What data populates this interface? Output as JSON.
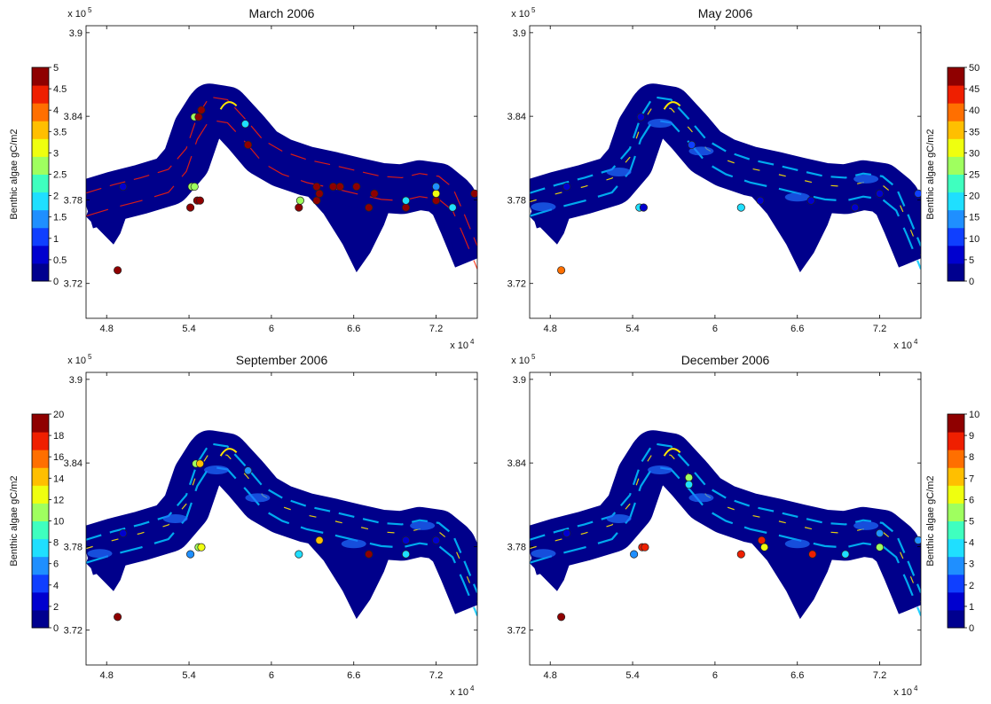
{
  "colormap": [
    "#00008f",
    "#0000cf",
    "#0f3fff",
    "#1f8fff",
    "#1fdfff",
    "#3fffbf",
    "#9fff5f",
    "#efff0f",
    "#ffbf00",
    "#ff6f00",
    "#ef1f00",
    "#8f0000"
  ],
  "river_colors": {
    "channel": "#00008b",
    "edge_cyan": "#00c8ff",
    "edge_yellow": "#ffe600",
    "edge_red": "#ff2000"
  },
  "chart_data": [
    {
      "type": "heatmap",
      "title": "March 2006",
      "x_exponent_label": "x 10",
      "x_exponent_power": "4",
      "y_exponent_label": "x 10",
      "y_exponent_power": "5",
      "x_ticks": [
        4.8,
        5.4,
        6,
        6.6,
        7.2
      ],
      "x_tick_labels": [
        "4.8",
        "5.4",
        "6",
        "6.6",
        "7.2"
      ],
      "y_ticks": [
        3.72,
        3.78,
        3.84,
        3.9
      ],
      "y_tick_labels": [
        "3.72",
        "3.78",
        "3.84",
        "3.9"
      ],
      "xlim": [
        4.65,
        7.5
      ],
      "ylim": [
        3.695,
        3.905
      ],
      "colorbar": {
        "label": "Benthic algae gC/m2",
        "range": [
          0,
          5
        ],
        "ticks": [
          0,
          0.5,
          1,
          1.5,
          2,
          2.5,
          3,
          3.5,
          4,
          4.5,
          5
        ],
        "tick_labels": [
          "0",
          "0.5",
          "1",
          "1.5",
          "2",
          "2.5",
          "3",
          "3.5",
          "4",
          "4.5",
          "5"
        ]
      },
      "stations": [
        {
          "x": 4.88,
          "y": 3.7295,
          "v": 5
        },
        {
          "x": 4.92,
          "y": 3.7895,
          "v": 0.5
        },
        {
          "x": 5.41,
          "y": 3.7745,
          "v": 5
        },
        {
          "x": 5.46,
          "y": 3.7795,
          "v": 5
        },
        {
          "x": 5.48,
          "y": 3.7795,
          "v": 5
        },
        {
          "x": 5.42,
          "y": 3.7895,
          "v": 2.5
        },
        {
          "x": 5.44,
          "y": 3.7895,
          "v": 2.5
        },
        {
          "x": 5.44,
          "y": 3.8395,
          "v": 2.5
        },
        {
          "x": 5.47,
          "y": 3.8395,
          "v": 5
        },
        {
          "x": 5.49,
          "y": 3.8445,
          "v": 5
        },
        {
          "x": 5.81,
          "y": 3.8345,
          "v": 2
        },
        {
          "x": 5.83,
          "y": 3.8195,
          "v": 5
        },
        {
          "x": 6.2,
          "y": 3.7745,
          "v": 5
        },
        {
          "x": 6.21,
          "y": 3.7795,
          "v": 2.5
        },
        {
          "x": 6.33,
          "y": 3.7795,
          "v": 5
        },
        {
          "x": 6.35,
          "y": 3.7845,
          "v": 5
        },
        {
          "x": 6.33,
          "y": 3.7895,
          "v": 5
        },
        {
          "x": 6.45,
          "y": 3.7895,
          "v": 5
        },
        {
          "x": 6.5,
          "y": 3.7895,
          "v": 5
        },
        {
          "x": 6.62,
          "y": 3.7895,
          "v": 5
        },
        {
          "x": 6.71,
          "y": 3.7745,
          "v": 5
        },
        {
          "x": 6.75,
          "y": 3.7845,
          "v": 5
        },
        {
          "x": 6.98,
          "y": 3.7745,
          "v": 5
        },
        {
          "x": 6.98,
          "y": 3.7795,
          "v": 2
        },
        {
          "x": 7.2,
          "y": 3.7795,
          "v": 5
        },
        {
          "x": 7.2,
          "y": 3.7845,
          "v": 3
        },
        {
          "x": 7.2,
          "y": 3.7895,
          "v": 1.5
        },
        {
          "x": 7.32,
          "y": 3.7745,
          "v": 2
        },
        {
          "x": 7.48,
          "y": 3.7845,
          "v": 5
        }
      ]
    },
    {
      "type": "heatmap",
      "title": "May 2006",
      "x_exponent_label": "x 10",
      "x_exponent_power": "4",
      "y_exponent_label": "x 10",
      "y_exponent_power": "5",
      "x_ticks": [
        4.8,
        5.4,
        6,
        6.6,
        7.2
      ],
      "x_tick_labels": [
        "4.8",
        "5.4",
        "6",
        "6.6",
        "7.2"
      ],
      "y_ticks": [
        3.72,
        3.78,
        3.84,
        3.9
      ],
      "y_tick_labels": [
        "3.72",
        "3.78",
        "3.84",
        "3.9"
      ],
      "xlim": [
        4.65,
        7.5
      ],
      "ylim": [
        3.695,
        3.905
      ],
      "colorbar": {
        "label": "Benthic algae gC/m2",
        "range": [
          0,
          50
        ],
        "ticks": [
          0,
          5,
          10,
          15,
          20,
          25,
          30,
          35,
          40,
          45,
          50
        ],
        "tick_labels": [
          "0",
          "5",
          "10",
          "15",
          "20",
          "25",
          "30",
          "35",
          "40",
          "45",
          "50"
        ]
      },
      "stations": [
        {
          "x": 4.88,
          "y": 3.7295,
          "v": 40
        },
        {
          "x": 4.92,
          "y": 3.7895,
          "v": 5
        },
        {
          "x": 5.45,
          "y": 3.7745,
          "v": 20
        },
        {
          "x": 5.48,
          "y": 3.7745,
          "v": 5
        },
        {
          "x": 5.83,
          "y": 3.8195,
          "v": 10
        },
        {
          "x": 5.46,
          "y": 3.8395,
          "v": 5
        },
        {
          "x": 6.19,
          "y": 3.7745,
          "v": 20
        },
        {
          "x": 6.33,
          "y": 3.7795,
          "v": 5
        },
        {
          "x": 6.7,
          "y": 3.7795,
          "v": 5
        },
        {
          "x": 7.2,
          "y": 3.7845,
          "v": 5
        },
        {
          "x": 7.48,
          "y": 3.7845,
          "v": 10
        },
        {
          "x": 7.02,
          "y": 3.7745,
          "v": 5
        }
      ]
    },
    {
      "type": "heatmap",
      "title": "September 2006",
      "x_exponent_label": "x 10",
      "x_exponent_power": "4",
      "y_exponent_label": "x 10",
      "y_exponent_power": "5",
      "x_ticks": [
        4.8,
        5.4,
        6,
        6.6,
        7.2
      ],
      "x_tick_labels": [
        "4.8",
        "5.4",
        "6",
        "6.6",
        "7.2"
      ],
      "y_ticks": [
        3.72,
        3.78,
        3.84,
        3.9
      ],
      "y_tick_labels": [
        "3.72",
        "3.78",
        "3.84",
        "3.9"
      ],
      "xlim": [
        4.65,
        7.5
      ],
      "ylim": [
        3.695,
        3.905
      ],
      "colorbar": {
        "label": "Benthic algae gC/m2",
        "range": [
          0,
          20
        ],
        "ticks": [
          0,
          2,
          4,
          6,
          8,
          10,
          12,
          14,
          16,
          18,
          20
        ],
        "tick_labels": [
          "0",
          "2",
          "4",
          "6",
          "8",
          "10",
          "12",
          "14",
          "16",
          "18",
          "20"
        ]
      },
      "stations": [
        {
          "x": 4.88,
          "y": 3.7295,
          "v": 20
        },
        {
          "x": 4.92,
          "y": 3.7895,
          "v": 2
        },
        {
          "x": 5.41,
          "y": 3.7745,
          "v": 6
        },
        {
          "x": 5.47,
          "y": 3.7795,
          "v": 10
        },
        {
          "x": 5.49,
          "y": 3.7795,
          "v": 12
        },
        {
          "x": 5.45,
          "y": 3.8395,
          "v": 10
        },
        {
          "x": 5.48,
          "y": 3.8395,
          "v": 14
        },
        {
          "x": 5.83,
          "y": 3.8345,
          "v": 6
        },
        {
          "x": 6.2,
          "y": 3.7745,
          "v": 8
        },
        {
          "x": 6.35,
          "y": 3.7845,
          "v": 14
        },
        {
          "x": 6.71,
          "y": 3.7745,
          "v": 20
        },
        {
          "x": 6.98,
          "y": 3.7745,
          "v": 8
        },
        {
          "x": 6.98,
          "y": 3.7845,
          "v": 2
        },
        {
          "x": 7.2,
          "y": 3.7845,
          "v": 2
        }
      ]
    },
    {
      "type": "heatmap",
      "title": "December 2006",
      "x_exponent_label": "x 10",
      "x_exponent_power": "4",
      "y_exponent_label": "x 10",
      "y_exponent_power": "5",
      "x_ticks": [
        4.8,
        5.4,
        6,
        6.6,
        7.2
      ],
      "x_tick_labels": [
        "4.8",
        "5.4",
        "6",
        "6.6",
        "7.2"
      ],
      "y_ticks": [
        3.72,
        3.78,
        3.84,
        3.9
      ],
      "y_tick_labels": [
        "3.72",
        "3.78",
        "3.84",
        "3.9"
      ],
      "xlim": [
        4.65,
        7.5
      ],
      "ylim": [
        3.695,
        3.905
      ],
      "colorbar": {
        "label": "Benthic algae gC/m2",
        "range": [
          0,
          10
        ],
        "ticks": [
          0,
          1,
          2,
          3,
          4,
          5,
          6,
          7,
          8,
          9,
          10
        ],
        "tick_labels": [
          "0",
          "1",
          "2",
          "3",
          "4",
          "5",
          "6",
          "7",
          "8",
          "9",
          "10"
        ]
      },
      "stations": [
        {
          "x": 4.88,
          "y": 3.7295,
          "v": 10
        },
        {
          "x": 4.92,
          "y": 3.7895,
          "v": 1
        },
        {
          "x": 5.41,
          "y": 3.7745,
          "v": 3
        },
        {
          "x": 5.47,
          "y": 3.7795,
          "v": 9
        },
        {
          "x": 5.49,
          "y": 3.7795,
          "v": 9
        },
        {
          "x": 5.81,
          "y": 3.8295,
          "v": 5
        },
        {
          "x": 5.81,
          "y": 3.8245,
          "v": 4
        },
        {
          "x": 6.19,
          "y": 3.7745,
          "v": 9
        },
        {
          "x": 6.34,
          "y": 3.7845,
          "v": 9
        },
        {
          "x": 6.36,
          "y": 3.7795,
          "v": 6
        },
        {
          "x": 6.71,
          "y": 3.7745,
          "v": 9
        },
        {
          "x": 6.95,
          "y": 3.7745,
          "v": 4
        },
        {
          "x": 7.2,
          "y": 3.7795,
          "v": 5
        },
        {
          "x": 7.2,
          "y": 3.7895,
          "v": 3
        },
        {
          "x": 7.48,
          "y": 3.7845,
          "v": 3
        }
      ]
    }
  ]
}
